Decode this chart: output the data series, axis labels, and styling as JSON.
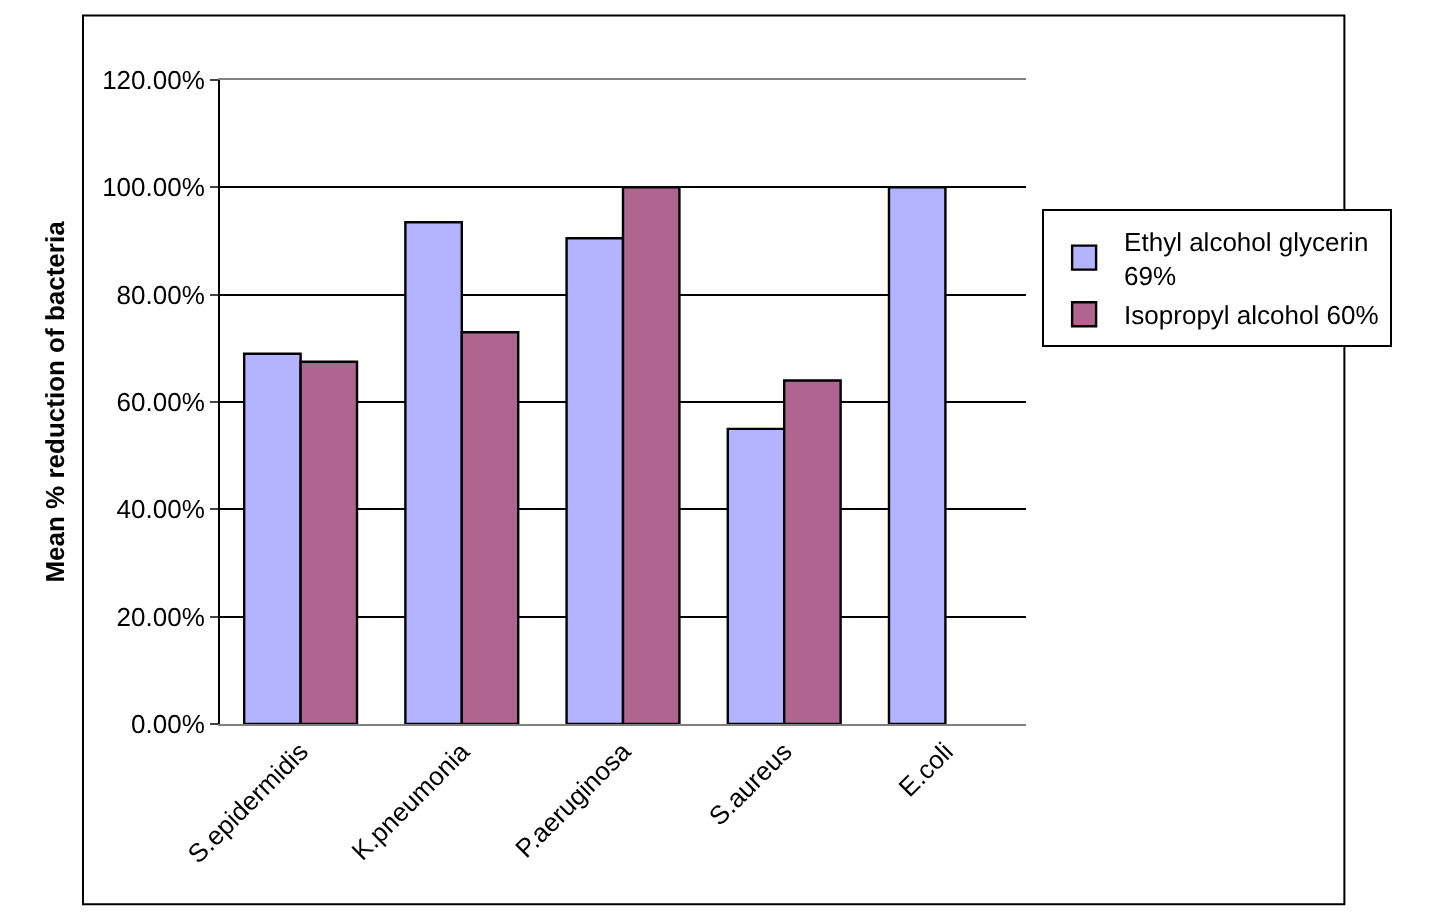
{
  "chart_data": {
    "type": "bar",
    "ylabel": "Mean % reduction of bacteria",
    "categories": [
      "S.epidermidis",
      "K.pneumonia",
      "P.aeruginosa",
      "S.aureus",
      "E.coli"
    ],
    "series": [
      {
        "name": "Ethyl alcohol glycerin 69%",
        "color": "#b3b3ff",
        "values": [
          69,
          93.5,
          90.5,
          55,
          100
        ]
      },
      {
        "name": "Isopropyl alcohol 60%",
        "color": "#b06590",
        "values": [
          67.5,
          73,
          100,
          64,
          null
        ]
      }
    ],
    "ylim": [
      0,
      120
    ],
    "yticks": [
      {
        "value": 0,
        "label": "0.00%"
      },
      {
        "value": 20,
        "label": "20.00%"
      },
      {
        "value": 40,
        "label": "40.00%"
      },
      {
        "value": 60,
        "label": "60.00%"
      },
      {
        "value": 80,
        "label": "80.00%"
      },
      {
        "value": 100,
        "label": "100.00%"
      },
      {
        "value": 120,
        "label": "120.00%"
      }
    ],
    "grid": "y",
    "legend": "right"
  }
}
